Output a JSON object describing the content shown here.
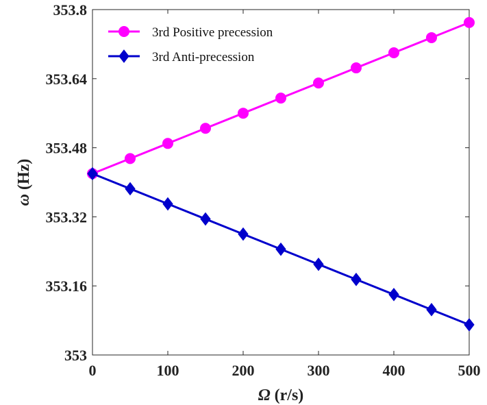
{
  "chart_data": {
    "type": "line",
    "title": "",
    "xlabel": {
      "symbol": "Ω",
      "rest": " (r/s)"
    },
    "ylabel": {
      "symbol": "ω",
      "rest": " (Hz)"
    },
    "xlim": [
      0,
      500
    ],
    "ylim": [
      353,
      353.8
    ],
    "xticks": [
      0,
      100,
      200,
      300,
      400,
      500
    ],
    "xtick_labels": [
      "0",
      "100",
      "200",
      "300",
      "400",
      "500"
    ],
    "yticks": [
      353,
      353.16,
      353.32,
      353.48,
      353.64,
      353.8
    ],
    "ytick_labels": [
      "353",
      "353.16",
      "353.32",
      "353.48",
      "353.64",
      "353.8"
    ],
    "grid": false,
    "legend_position": "top-left",
    "x": [
      0,
      50,
      100,
      150,
      200,
      250,
      300,
      350,
      400,
      450,
      500
    ],
    "series": [
      {
        "name": "3rd Positive precession",
        "color": "#ff00ff",
        "marker": "circle",
        "values": [
          353.42,
          353.455,
          353.49,
          353.525,
          353.56,
          353.595,
          353.63,
          353.665,
          353.7,
          353.735,
          353.77
        ]
      },
      {
        "name": "3rd Anti-precession",
        "color": "#0000cc",
        "marker": "diamond",
        "values": [
          353.42,
          353.385,
          353.35,
          353.315,
          353.28,
          353.245,
          353.21,
          353.175,
          353.14,
          353.105,
          353.07
        ]
      }
    ]
  }
}
